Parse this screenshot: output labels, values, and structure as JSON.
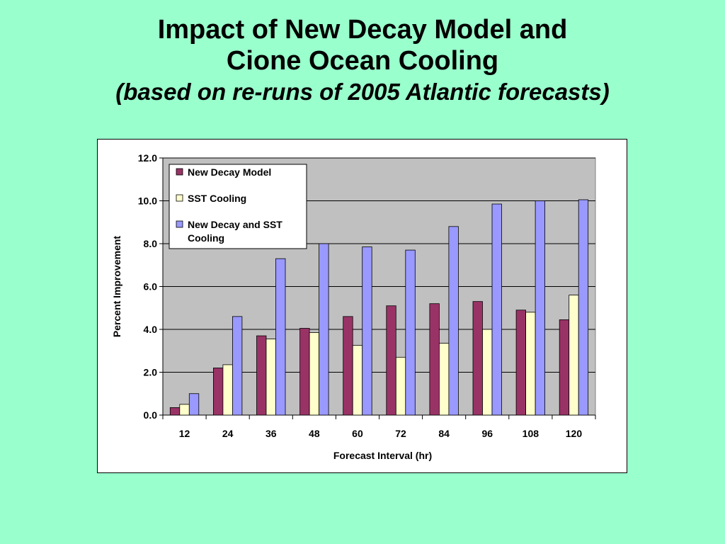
{
  "title": {
    "line1": "Impact of New Decay Model and",
    "line2": "Cione Ocean Cooling",
    "subtitle": "(based on re-runs of 2005 Atlantic forecasts)"
  },
  "chart_data": {
    "type": "bar",
    "xlabel": "Forecast Interval (hr)",
    "ylabel": "Percent Improvement",
    "ylim": [
      0,
      12
    ],
    "yticks": [
      "0.0",
      "2.0",
      "4.0",
      "6.0",
      "8.0",
      "10.0",
      "12.0"
    ],
    "grid": true,
    "legend_position": "top-left",
    "plot_background": "#c0c0c0",
    "categories": [
      "12",
      "24",
      "36",
      "48",
      "60",
      "72",
      "84",
      "96",
      "108",
      "120"
    ],
    "series": [
      {
        "name": "New Decay Model",
        "color": "#993366",
        "values": [
          0.35,
          2.2,
          3.7,
          4.05,
          4.6,
          5.1,
          5.2,
          5.3,
          4.9,
          4.45
        ]
      },
      {
        "name": "SST Cooling",
        "color": "#ffffcc",
        "values": [
          0.5,
          2.35,
          3.55,
          3.85,
          3.25,
          2.7,
          3.35,
          4.0,
          4.8,
          5.6
        ]
      },
      {
        "name": "New Decay and SST Cooling",
        "color": "#9999ff",
        "values": [
          1.0,
          4.6,
          7.3,
          8.0,
          7.85,
          7.7,
          8.8,
          9.85,
          10.0,
          10.05
        ]
      }
    ]
  }
}
